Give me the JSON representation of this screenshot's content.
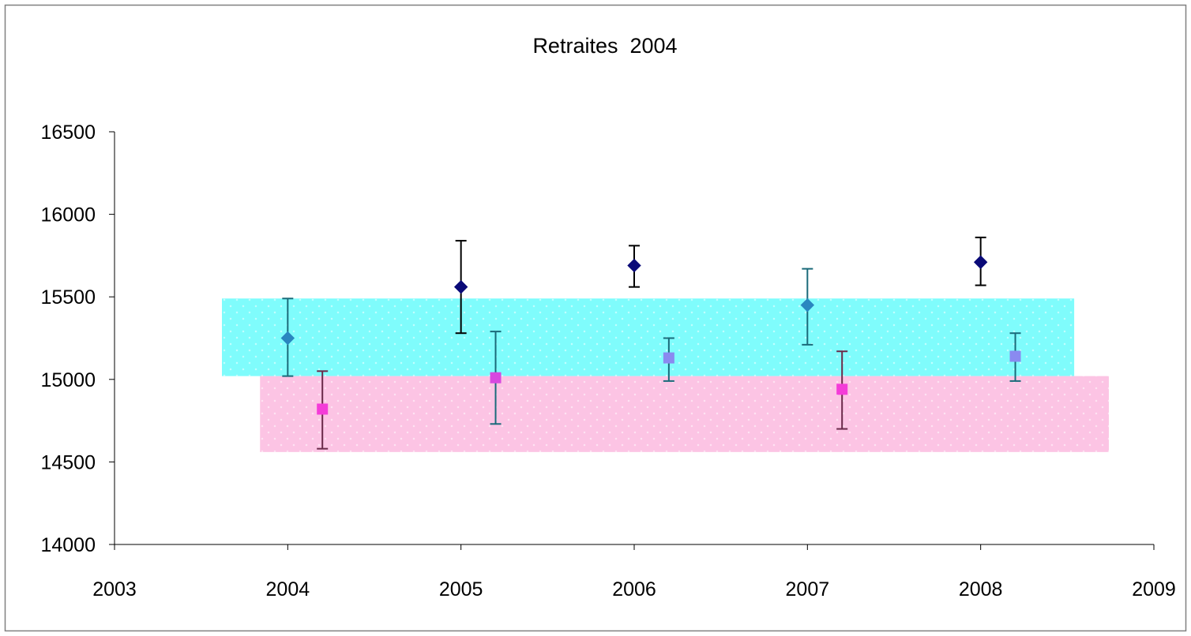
{
  "chart_data": {
    "type": "scatter",
    "title": "Retraites  2004",
    "xlabel": "",
    "ylabel": "",
    "xlim": [
      2003,
      2009
    ],
    "ylim": [
      14000,
      16500
    ],
    "x_ticks": [
      "2003",
      "2004",
      "2005",
      "2006",
      "2007",
      "2008",
      "2009"
    ],
    "y_ticks": [
      "14000",
      "14500",
      "15000",
      "15500",
      "16000",
      "16500"
    ],
    "grid": false,
    "legend": "none",
    "bands": [
      {
        "color": "#7ffcfc",
        "x": [
          2003.62,
          2008.54
        ],
        "y": [
          15020,
          15490
        ]
      },
      {
        "color": "#fcc4e4",
        "x": [
          2003.84,
          2008.74
        ],
        "y": [
          14560,
          15020
        ]
      }
    ],
    "series": [
      {
        "marker": "diamond",
        "color": "#0a0a78",
        "error_color": "#000000",
        "x": [
          2005,
          2006,
          2008
        ],
        "y": [
          15560,
          15690,
          15710
        ],
        "low": [
          15280,
          15560,
          15570
        ],
        "high": [
          15840,
          15810,
          15860
        ]
      },
      {
        "marker": "diamond",
        "color": "#2a86c0",
        "error_color": "#1a6a7a",
        "x": [
          2004,
          2007
        ],
        "y": [
          15250,
          15450
        ],
        "low": [
          15020,
          15210
        ],
        "high": [
          15490,
          15670
        ]
      },
      {
        "marker": "square",
        "color": "#f43cd8",
        "error_color": "#6a2a4a",
        "x": [
          2004.2,
          2007.2
        ],
        "y": [
          14820,
          14940
        ],
        "low": [
          14580,
          14700
        ],
        "high": [
          15050,
          15170
        ]
      },
      {
        "marker": "square",
        "color": "#d848e0",
        "error_color": "#1a6a7a",
        "x": [
          2005.2
        ],
        "y": [
          15010
        ],
        "low": [
          14730
        ],
        "high": [
          15290
        ]
      },
      {
        "marker": "square",
        "color": "#8a8af0",
        "error_color": "#1a6a7a",
        "x": [
          2006.2,
          2008.2
        ],
        "y": [
          15130,
          15140
        ],
        "low": [
          14990,
          14990
        ],
        "high": [
          15250,
          15280
        ]
      }
    ]
  }
}
